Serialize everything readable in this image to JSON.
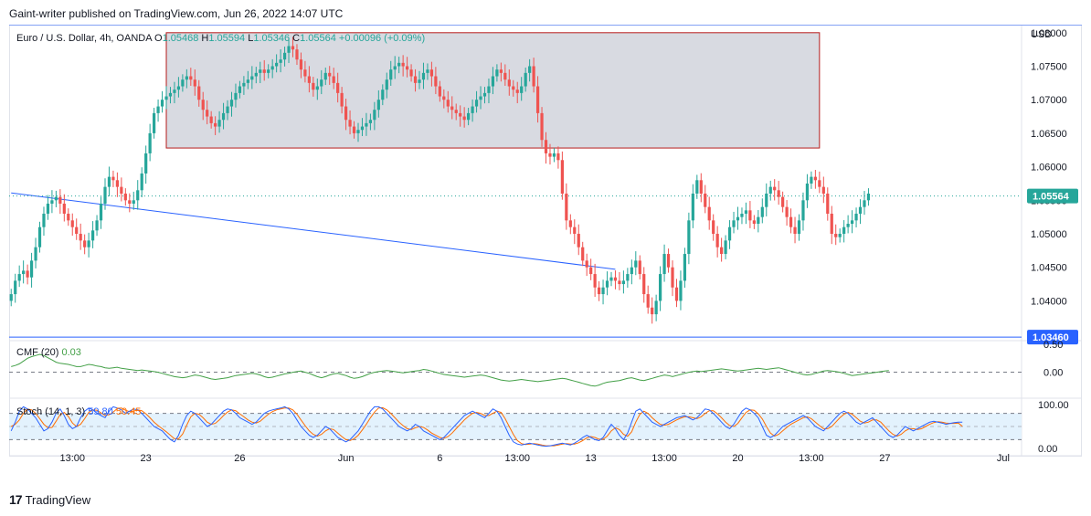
{
  "header": {
    "publisher": "Gaint-writer published on TradingView.com, Jun 26, 2022 14:07 UTC"
  },
  "footer": {
    "brand": "TradingView"
  },
  "colors": {
    "up": "#26a69a",
    "down": "#ef5350",
    "trendline": "#2962ff",
    "zone_fill": "#d1d4dc",
    "zone_border": "#b71c1c",
    "cmf": "#43a047",
    "stoch_k": "#2962ff",
    "stoch_d": "#ff6d00",
    "stoch_band": "#e3f2fd",
    "price_label_bg": "#131722",
    "dotted": "#26a69a"
  },
  "chart_data": {
    "type": "candlestick",
    "legend": {
      "symbol": "Euro / U.S. Dollar, 4h, OANDA",
      "open_label": "O",
      "open": "1.05468",
      "high_label": "H",
      "high": "1.05594",
      "low_label": "L",
      "low": "1.05346",
      "close_label": "C",
      "close": "1.05564",
      "change": "+0.00096 (+0.09%)"
    },
    "currency": "USD",
    "price_axis": {
      "ylim": [
        1.0342,
        1.0812
      ],
      "ticks": [
        "1.08000",
        "1.07500",
        "1.07000",
        "1.06500",
        "1.06000",
        "1.05500",
        "1.05000",
        "1.04500",
        "1.04000"
      ],
      "tick_values": [
        1.08,
        1.075,
        1.07,
        1.065,
        1.06,
        1.055,
        1.05,
        1.045,
        1.04
      ]
    },
    "last_price": {
      "label": "1.05564",
      "value": 1.05564
    },
    "support_line": {
      "label": "1.03460",
      "value": 1.0346
    },
    "top_line_value": 1.0812,
    "resistance_zone": {
      "bar_start": 38,
      "bar_end": 198,
      "price_low": 1.0628,
      "price_high": 1.08
    },
    "trendline": {
      "start": {
        "bar": 0,
        "price": 1.0561
      },
      "end": {
        "bar": 148,
        "price": 1.0447
      }
    },
    "time_axis": {
      "labels": [
        "13:00",
        "23",
        "26",
        "Jun",
        "6",
        "13:00",
        "13",
        "13:00",
        "20",
        "13:00",
        "27",
        "Jul"
      ],
      "label_bars": [
        15,
        33,
        56,
        82,
        105,
        124,
        142,
        160,
        178,
        196,
        214,
        243
      ]
    },
    "bars_total": 248,
    "closes": [
      1.041,
      1.043,
      1.044,
      1.0445,
      1.0435,
      1.046,
      1.048,
      1.051,
      1.053,
      1.0545,
      1.055,
      1.0555,
      1.0545,
      1.053,
      1.052,
      1.051,
      1.05,
      1.049,
      1.048,
      1.049,
      1.0505,
      1.052,
      1.0545,
      1.057,
      1.0585,
      1.058,
      1.057,
      1.056,
      1.055,
      1.0545,
      1.055,
      1.0565,
      1.059,
      1.062,
      1.065,
      1.068,
      1.069,
      1.07,
      1.0705,
      1.071,
      1.0715,
      1.072,
      1.073,
      1.0735,
      1.073,
      1.072,
      1.07,
      1.0685,
      1.0675,
      1.0665,
      1.066,
      1.067,
      1.068,
      1.069,
      1.07,
      1.071,
      1.072,
      1.0725,
      1.073,
      1.0735,
      1.074,
      1.0745,
      1.074,
      1.0745,
      1.075,
      1.0755,
      1.076,
      1.077,
      1.078,
      1.0775,
      1.076,
      1.0745,
      1.0735,
      1.0725,
      1.0715,
      1.072,
      1.073,
      1.074,
      1.0735,
      1.0725,
      1.071,
      1.069,
      1.067,
      1.066,
      1.065,
      1.0655,
      1.066,
      1.0665,
      1.067,
      1.0685,
      1.07,
      1.0715,
      1.073,
      1.0745,
      1.075,
      1.0755,
      1.075,
      1.0745,
      1.0735,
      1.0725,
      1.073,
      1.074,
      1.0745,
      1.0735,
      1.072,
      1.0705,
      1.07,
      1.069,
      1.0685,
      1.068,
      1.0675,
      1.067,
      1.068,
      1.069,
      1.07,
      1.0705,
      1.071,
      1.072,
      1.0735,
      1.0745,
      1.074,
      1.073,
      1.072,
      1.0715,
      1.071,
      1.072,
      1.074,
      1.075,
      1.072,
      1.068,
      1.064,
      1.062,
      1.0615,
      1.062,
      1.061,
      1.056,
      1.052,
      1.051,
      1.05,
      1.048,
      1.046,
      1.045,
      1.044,
      1.042,
      1.041,
      1.042,
      1.043,
      1.0435,
      1.043,
      1.0425,
      1.043,
      1.044,
      1.045,
      1.046,
      1.044,
      1.041,
      1.039,
      1.038,
      1.04,
      1.044,
      1.047,
      1.045,
      1.042,
      1.04,
      1.043,
      1.047,
      1.052,
      1.056,
      1.058,
      1.056,
      1.054,
      1.052,
      1.05,
      1.048,
      1.047,
      1.049,
      1.051,
      1.052,
      1.0525,
      1.053,
      1.0535,
      1.052,
      1.0515,
      1.0525,
      1.054,
      1.056,
      1.057,
      1.0565,
      1.0555,
      1.054,
      1.0525,
      1.051,
      1.05,
      1.052,
      1.055,
      1.0575,
      1.0585,
      1.058,
      1.057,
      1.056,
      1.053,
      1.05,
      1.0495,
      1.05,
      1.051,
      1.0515,
      1.052,
      1.053,
      1.054,
      1.055,
      1.056
    ]
  },
  "cmf": {
    "name": "CMF (20)",
    "value": "0.03",
    "ylim": [
      -0.45,
      0.55
    ],
    "ticks": [
      "0.50",
      "0.00"
    ],
    "tick_values": [
      0.5,
      0.0
    ],
    "values": [
      0.1,
      0.12,
      0.15,
      0.2,
      0.25,
      0.28,
      0.3,
      0.32,
      0.3,
      0.26,
      0.22,
      0.18,
      0.16,
      0.15,
      0.14,
      0.12,
      0.1,
      0.1,
      0.12,
      0.14,
      0.13,
      0.11,
      0.1,
      0.08,
      0.07,
      0.08,
      0.09,
      0.07,
      0.06,
      0.05,
      0.04,
      0.03,
      0.04,
      0.03,
      0.02,
      0.01,
      0.0,
      -0.02,
      -0.04,
      -0.06,
      -0.08,
      -0.09,
      -0.1,
      -0.09,
      -0.07,
      -0.05,
      -0.06,
      -0.08,
      -0.1,
      -0.12,
      -0.13,
      -0.12,
      -0.11,
      -0.1,
      -0.08,
      -0.06,
      -0.05,
      -0.04,
      -0.03,
      -0.02,
      -0.03,
      -0.05,
      -0.08,
      -0.1,
      -0.09,
      -0.07,
      -0.05,
      -0.03,
      -0.02,
      0.0,
      0.01,
      0.02,
      0.0,
      -0.02,
      -0.05,
      -0.08,
      -0.1,
      -0.08,
      -0.05,
      -0.03,
      -0.02,
      -0.04,
      -0.06,
      -0.09,
      -0.11,
      -0.1,
      -0.08,
      -0.05,
      -0.02,
      0.0,
      0.01,
      0.02,
      0.03,
      0.02,
      0.01,
      0.0,
      -0.01,
      0.0,
      0.01,
      0.02,
      0.03,
      0.05,
      0.04,
      0.02,
      0.0,
      -0.02,
      -0.04,
      -0.05,
      -0.06,
      -0.07,
      -0.08,
      -0.09,
      -0.08,
      -0.07,
      -0.06,
      -0.05,
      -0.06,
      -0.08,
      -0.1,
      -0.12,
      -0.14,
      -0.15,
      -0.16,
      -0.15,
      -0.14,
      -0.13,
      -0.14,
      -0.15,
      -0.16,
      -0.17,
      -0.16,
      -0.15,
      -0.14,
      -0.13,
      -0.12,
      -0.11,
      -0.12,
      -0.14,
      -0.16,
      -0.18,
      -0.2,
      -0.22,
      -0.24,
      -0.25,
      -0.23,
      -0.2,
      -0.18,
      -0.17,
      -0.16,
      -0.15,
      -0.13,
      -0.11,
      -0.1,
      -0.12,
      -0.14,
      -0.15,
      -0.13,
      -0.11,
      -0.09,
      -0.07,
      -0.05,
      -0.06,
      -0.08,
      -0.06,
      -0.04,
      -0.02,
      0.0,
      0.01,
      0.02,
      0.01,
      0.02,
      0.03,
      0.04,
      0.05,
      0.06,
      0.05,
      0.04,
      0.03,
      0.02,
      0.03,
      0.04,
      0.05,
      0.06,
      0.07,
      0.06,
      0.05,
      0.06,
      0.07,
      0.08,
      0.06,
      0.04,
      0.02,
      0.0,
      -0.02,
      -0.04,
      -0.05,
      -0.04,
      -0.02,
      0.0,
      0.02,
      0.03,
      0.02,
      0.01,
      0.0,
      -0.02,
      -0.04,
      -0.06,
      -0.05,
      -0.04,
      -0.03,
      -0.02,
      -0.01,
      0.0,
      0.01,
      0.02,
      0.03
    ]
  },
  "stoch": {
    "name": "Stoch (14, 1, 3)",
    "k_value": "59.80",
    "d_value": "50.45",
    "ylim": [
      0,
      100
    ],
    "ticks": [
      "100.00",
      "0.00"
    ],
    "tick_values": [
      100,
      0
    ],
    "upper_band": 80,
    "lower_band": 20,
    "k": [
      40,
      60,
      85,
      95,
      90,
      80,
      70,
      55,
      40,
      45,
      60,
      80,
      90,
      75,
      55,
      45,
      50,
      70,
      85,
      92,
      88,
      80,
      75,
      70,
      85,
      95,
      92,
      88,
      80,
      85,
      90,
      88,
      80,
      70,
      60,
      50,
      45,
      40,
      30,
      20,
      15,
      30,
      55,
      75,
      85,
      80,
      70,
      60,
      50,
      55,
      65,
      75,
      85,
      90,
      88,
      80,
      70,
      65,
      60,
      55,
      60,
      70,
      80,
      85,
      88,
      90,
      92,
      95,
      90,
      80,
      65,
      50,
      40,
      30,
      25,
      30,
      40,
      50,
      45,
      35,
      25,
      20,
      15,
      20,
      30,
      40,
      55,
      70,
      85,
      95,
      95,
      90,
      80,
      70,
      60,
      50,
      45,
      40,
      45,
      55,
      50,
      40,
      35,
      30,
      25,
      20,
      25,
      35,
      45,
      55,
      65,
      75,
      80,
      85,
      80,
      75,
      70,
      80,
      90,
      85,
      70,
      50,
      30,
      15,
      10,
      8,
      10,
      12,
      10,
      8,
      6,
      5,
      6,
      8,
      10,
      12,
      10,
      8,
      12,
      18,
      25,
      30,
      25,
      20,
      18,
      25,
      40,
      55,
      45,
      30,
      20,
      35,
      60,
      85,
      90,
      80,
      70,
      60,
      55,
      50,
      55,
      60,
      65,
      70,
      72,
      75,
      70,
      65,
      70,
      80,
      90,
      88,
      80,
      70,
      60,
      50,
      45,
      55,
      70,
      85,
      92,
      88,
      80,
      70,
      50,
      30,
      25,
      30,
      40,
      50,
      55,
      60,
      65,
      70,
      75,
      70,
      60,
      50,
      45,
      40,
      50,
      60,
      70,
      80,
      85,
      80,
      70,
      60,
      55,
      60,
      65,
      70,
      60,
      50,
      40,
      30,
      25,
      30,
      40,
      50,
      45,
      40,
      45,
      50,
      55,
      60,
      62,
      60,
      58,
      55,
      57,
      59,
      60,
      59.8
    ],
    "d": [
      50,
      55,
      65,
      80,
      90,
      88,
      80,
      68,
      55,
      47,
      48,
      62,
      77,
      82,
      73,
      58,
      50,
      55,
      68,
      82,
      88,
      87,
      81,
      75,
      77,
      83,
      91,
      92,
      87,
      84,
      85,
      88,
      86,
      79,
      70,
      60,
      52,
      45,
      38,
      30,
      22,
      22,
      33,
      53,
      72,
      80,
      78,
      70,
      60,
      55,
      57,
      65,
      75,
      83,
      88,
      86,
      79,
      72,
      65,
      60,
      58,
      62,
      70,
      78,
      84,
      88,
      90,
      92,
      92,
      88,
      78,
      65,
      52,
      40,
      32,
      28,
      32,
      40,
      45,
      43,
      35,
      27,
      20,
      18,
      22,
      30,
      42,
      55,
      70,
      83,
      92,
      93,
      88,
      80,
      70,
      60,
      52,
      45,
      43,
      47,
      50,
      48,
      42,
      35,
      30,
      25,
      23,
      27,
      35,
      45,
      55,
      65,
      73,
      80,
      82,
      80,
      75,
      75,
      80,
      85,
      82,
      68,
      50,
      32,
      18,
      11,
      9,
      10,
      11,
      10,
      8,
      6,
      6,
      6,
      8,
      10,
      11,
      10,
      10,
      13,
      18,
      24,
      27,
      25,
      21,
      21,
      28,
      40,
      47,
      43,
      32,
      28,
      38,
      60,
      78,
      85,
      80,
      70,
      62,
      55,
      53,
      55,
      60,
      65,
      69,
      72,
      72,
      70,
      68,
      72,
      80,
      86,
      86,
      79,
      70,
      60,
      52,
      50,
      57,
      70,
      82,
      88,
      87,
      79,
      67,
      50,
      35,
      28,
      32,
      40,
      48,
      55,
      60,
      65,
      70,
      72,
      68,
      60,
      52,
      45,
      45,
      50,
      60,
      70,
      78,
      82,
      78,
      70,
      62,
      58,
      60,
      65,
      65,
      60,
      50,
      40,
      32,
      28,
      32,
      40,
      45,
      45,
      43,
      45,
      50,
      55,
      59,
      61,
      60,
      58,
      57,
      57,
      58,
      50.45
    ]
  }
}
